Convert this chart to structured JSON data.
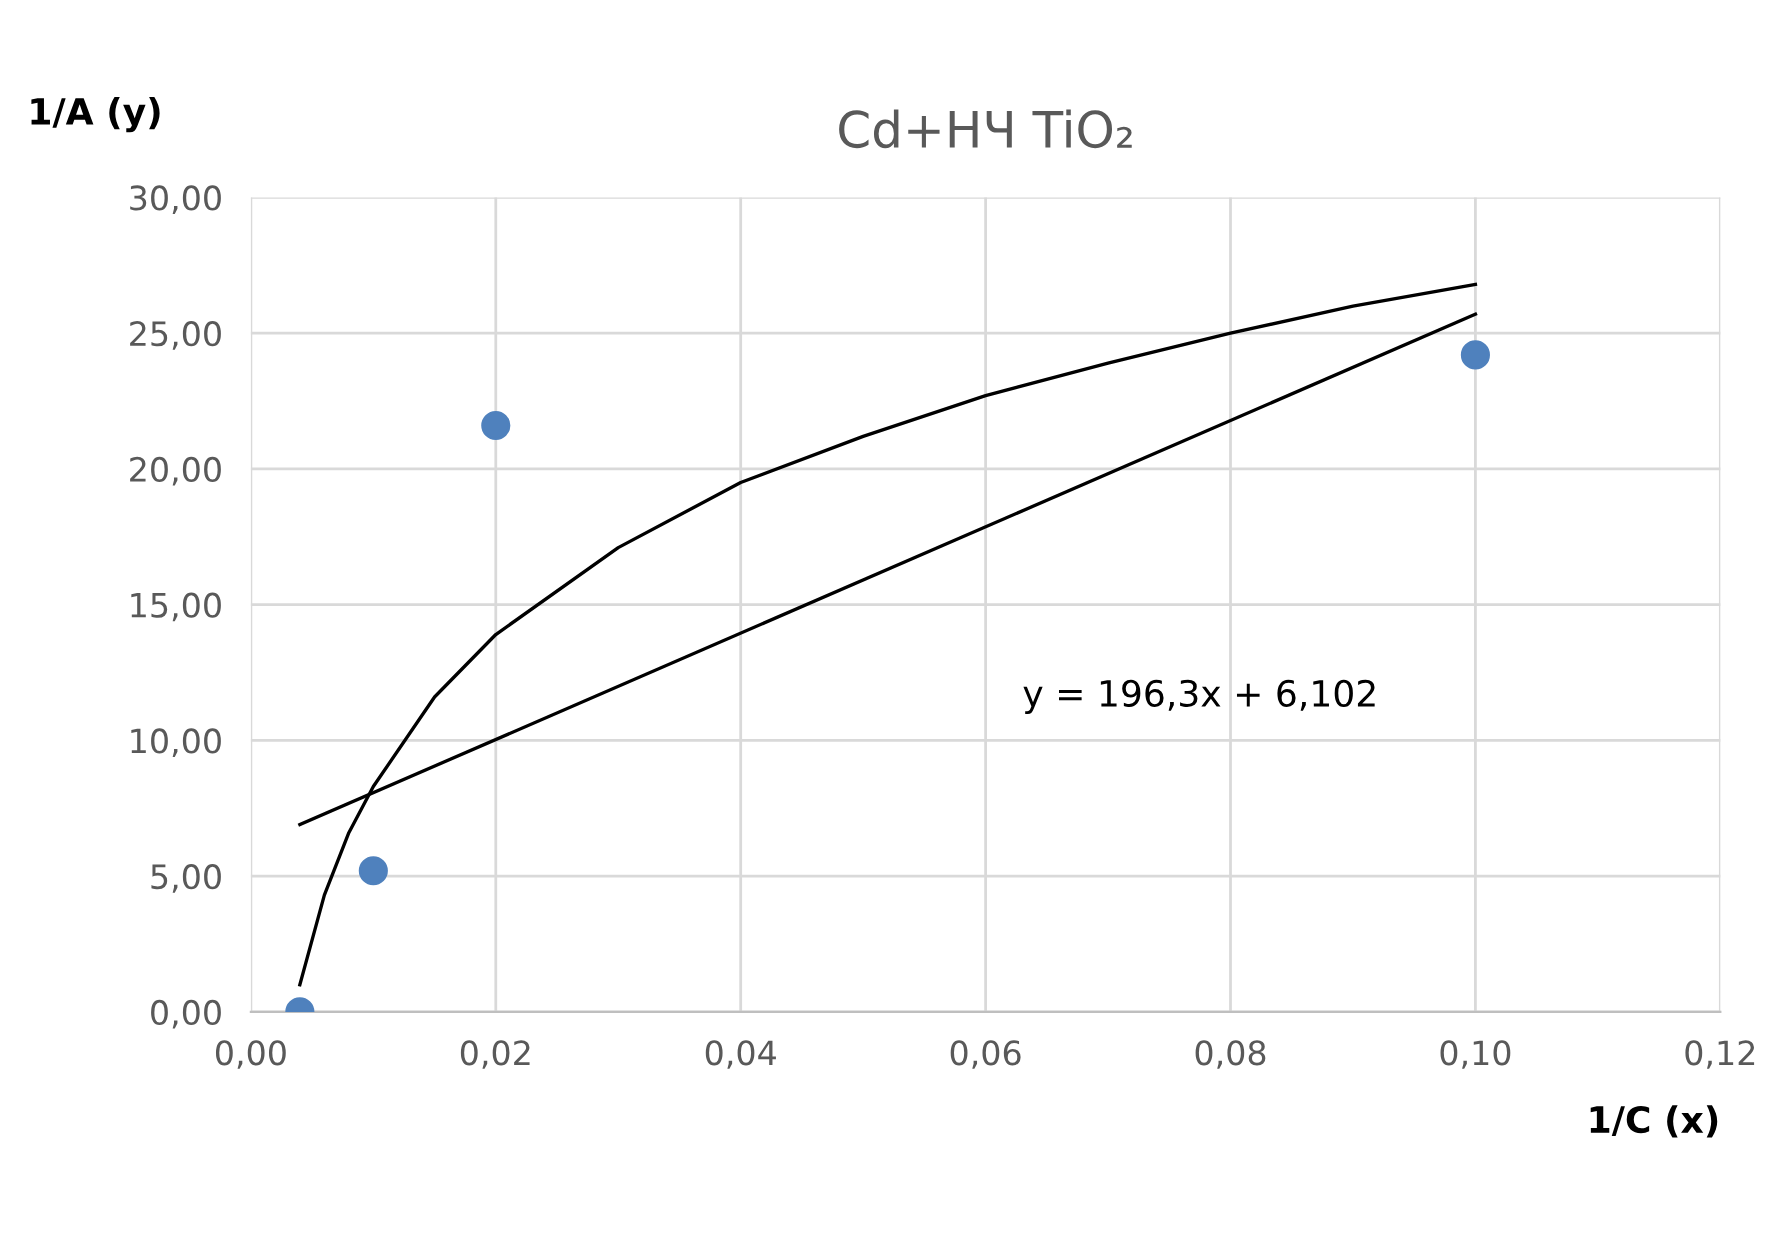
{
  "chart_data": {
    "type": "scatter",
    "title": "Cd+НЧ TiO₂",
    "xlabel": "1/C (x)",
    "ylabel": "1/A (y)",
    "xlim": [
      0,
      0.12
    ],
    "ylim": [
      0,
      30
    ],
    "xticks": [
      {
        "value": 0,
        "label": "0,00"
      },
      {
        "value": 0.02,
        "label": "0,02"
      },
      {
        "value": 0.04,
        "label": "0,04"
      },
      {
        "value": 0.06,
        "label": "0,06"
      },
      {
        "value": 0.08,
        "label": "0,08"
      },
      {
        "value": 0.1,
        "label": "0,10"
      },
      {
        "value": 0.12,
        "label": "0,12"
      }
    ],
    "yticks": [
      {
        "value": 0,
        "label": "0,00"
      },
      {
        "value": 5,
        "label": "5,00"
      },
      {
        "value": 10,
        "label": "10,00"
      },
      {
        "value": 15,
        "label": "15,00"
      },
      {
        "value": 20,
        "label": "20,00"
      },
      {
        "value": 25,
        "label": "25,00"
      },
      {
        "value": 30,
        "label": "30,00"
      }
    ],
    "grid": true,
    "series": [
      {
        "marker": "circle",
        "color": "#4f81bd",
        "x": [
          0.004,
          0.01,
          0.02,
          0.1
        ],
        "values": [
          0,
          5.2,
          21.6,
          24.2
        ]
      },
      {
        "type": "line",
        "marker": "none",
        "color": "#000000",
        "x": [
          0.004,
          0.1
        ],
        "values": [
          6.9,
          25.7
        ]
      },
      {
        "type": "line",
        "marker": "none",
        "color": "#000000",
        "x": [
          0.004,
          0.006,
          0.008,
          0.01,
          0.015,
          0.02,
          0.03,
          0.04,
          0.05,
          0.06,
          0.07,
          0.08,
          0.09,
          0.1
        ],
        "values": [
          1.0,
          4.3,
          6.6,
          8.3,
          11.6,
          13.9,
          17.1,
          19.5,
          21.2,
          22.7,
          23.9,
          25.0,
          26.0,
          26.8
        ]
      }
    ],
    "annotations": [
      "y = 196,3x + 6,102"
    ]
  }
}
